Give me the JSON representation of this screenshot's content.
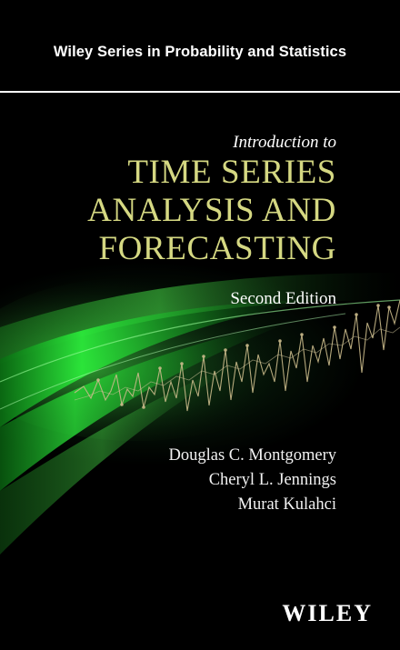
{
  "cover": {
    "series": "Wiley Series in Probability and Statistics",
    "intro": "Introduction to",
    "title_lines": [
      "TIME SERIES",
      "ANALYSIS AND",
      "FORECASTING"
    ],
    "edition": "Second Edition",
    "authors": [
      "Douglas C. Montgomery",
      "Cheryl L. Jennings",
      "Murat Kulahci"
    ],
    "publisher": "WILEY"
  },
  "colors": {
    "background": "#000000",
    "title": "#d5d882",
    "swoosh_green": "#3cf03c",
    "trace_tan": "#c9b98a"
  }
}
